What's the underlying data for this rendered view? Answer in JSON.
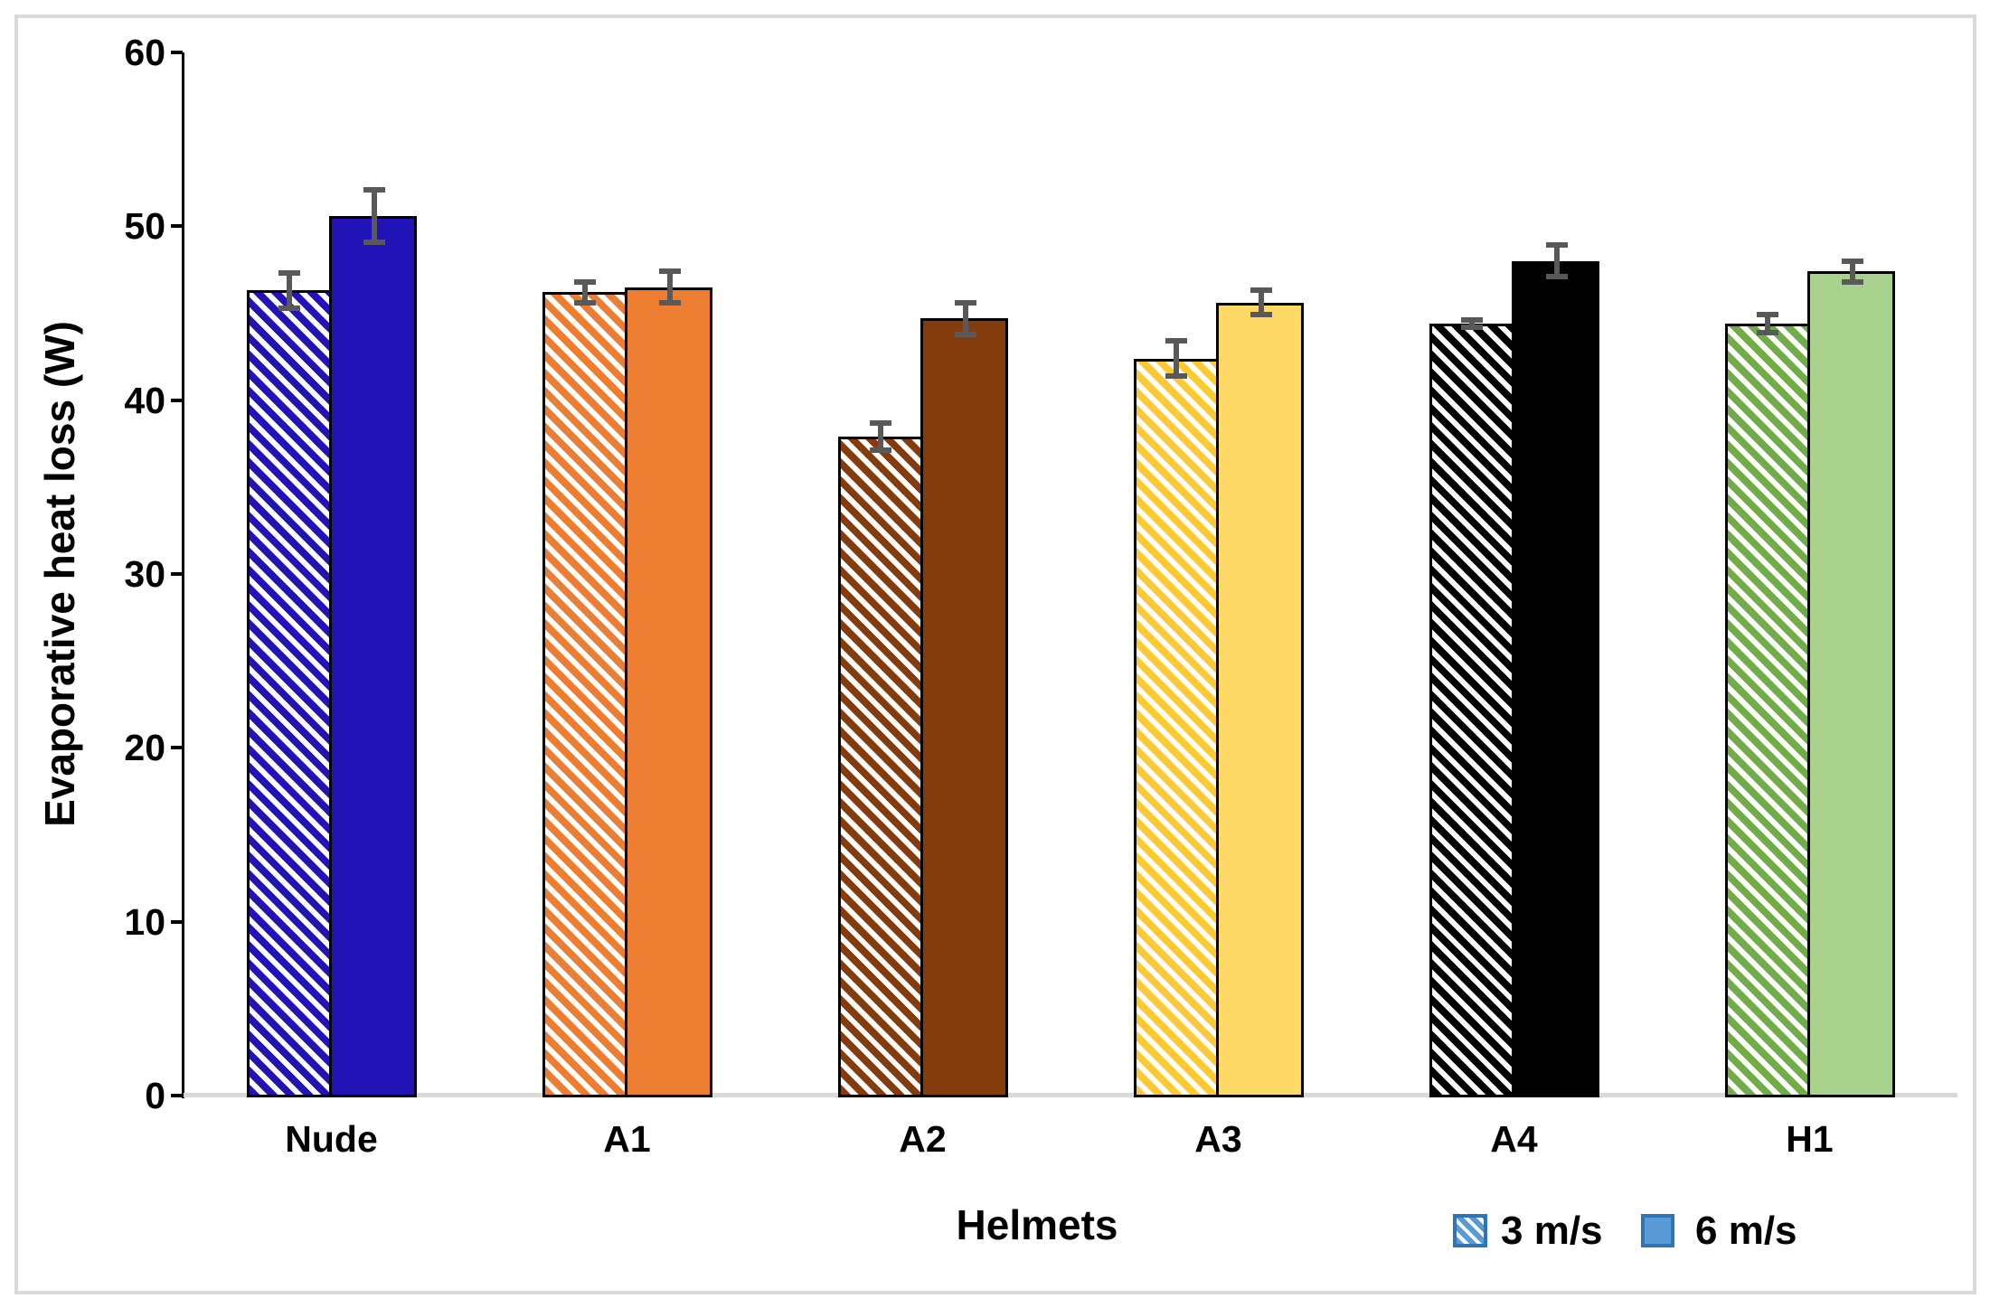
{
  "chart_data": {
    "type": "bar",
    "title": "",
    "xlabel": "Helmets",
    "ylabel": "Evaporative heat loss (W)",
    "categories": [
      "Nude",
      "A1",
      "A2",
      "A3",
      "A4",
      "H1"
    ],
    "series": [
      {
        "name": "3 m/s",
        "pattern": "hatched",
        "values": [
          46.3,
          46.2,
          37.9,
          42.4,
          44.4,
          44.4
        ],
        "errors": [
          1.0,
          0.6,
          0.8,
          1.0,
          0.2,
          0.5
        ]
      },
      {
        "name": "6 m/s",
        "pattern": "solid",
        "values": [
          50.6,
          46.5,
          44.7,
          45.6,
          48.0,
          47.4
        ],
        "errors": [
          1.5,
          0.9,
          0.9,
          0.7,
          0.9,
          0.6
        ]
      }
    ],
    "category_colors": [
      {
        "category": "Nude",
        "hatch_color": "#2113B5",
        "solid_color": "#2113B5"
      },
      {
        "category": "A1",
        "hatch_color": "#ED7D31",
        "solid_color": "#ED7D31"
      },
      {
        "category": "A2",
        "hatch_color": "#843C0C",
        "solid_color": "#843C0C"
      },
      {
        "category": "A3",
        "hatch_color": "#FFC933",
        "solid_color": "#FFD966"
      },
      {
        "category": "A4",
        "hatch_color": "#000000",
        "solid_color": "#000000"
      },
      {
        "category": "H1",
        "hatch_color": "#70AD47",
        "solid_color": "#A9D18E"
      }
    ],
    "ylim": [
      0,
      60
    ],
    "y_tick_labels": [
      "0",
      "10",
      "20",
      "30",
      "40",
      "50",
      "60"
    ],
    "grid": false,
    "legend_position": "bottom-right, below plot",
    "colors": {
      "error_bar": "#595959",
      "axis_line": "#000000",
      "baseline": "#D9D9D9",
      "frame_border": "#D9D9D9",
      "bar_outline": "#000000",
      "hatch_background": "#FFFFFF",
      "legend_swatch_fill": "#5B9BD5",
      "legend_swatch_border": "#2E75B6"
    }
  }
}
